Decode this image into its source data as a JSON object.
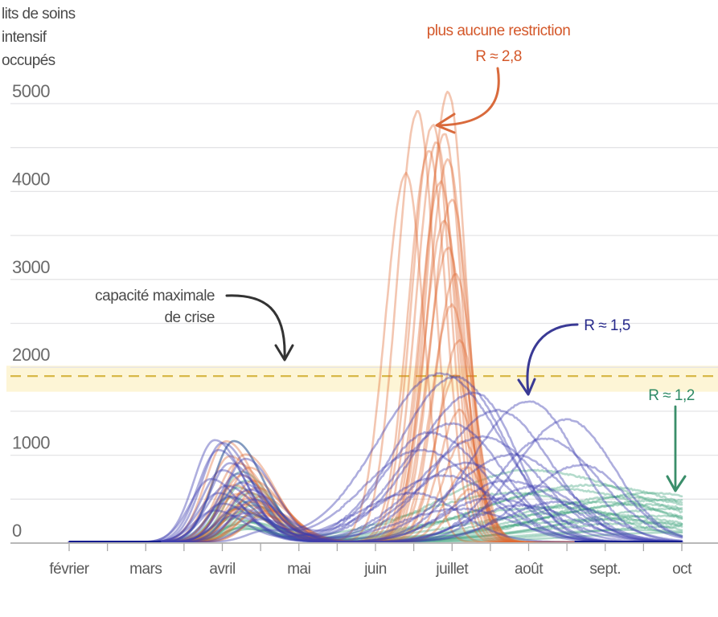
{
  "chart_data": {
    "type": "line",
    "title": "",
    "ylabel": [
      "lits de soins",
      "intensif",
      "occupés"
    ],
    "xlabel": "",
    "ylim": [
      0,
      5000
    ],
    "yticks": [
      0,
      1000,
      2000,
      3000,
      4000,
      5000
    ],
    "minor_grid_step": 500,
    "grid": true,
    "x_unit": "months since 1 Feb",
    "xlim": [
      0,
      8
    ],
    "xticks": [
      {
        "label": "février",
        "x": 0
      },
      {
        "label": "mars",
        "x": 1
      },
      {
        "label": "avril",
        "x": 2
      },
      {
        "label": "mai",
        "x": 3
      },
      {
        "label": "juin",
        "x": 4
      },
      {
        "label": "juillet",
        "x": 5
      },
      {
        "label": "août",
        "x": 6
      },
      {
        "label": "sept.",
        "x": 7
      },
      {
        "label": "oct",
        "x": 8
      }
    ],
    "capacity_line": {
      "value": 1900,
      "band": [
        1850,
        2000
      ],
      "label": [
        "capacité maximale",
        "de crise"
      ]
    },
    "colors": {
      "orange": "#e06a33",
      "blue": "#3f3db0",
      "navy": "#141c8e",
      "green": "#3aa07a",
      "capacity_band": "#fdf5d6",
      "capacity_dash": "#d8b848"
    },
    "series": [
      {
        "name": "plus aucune restriction",
        "scenario_R": "R ≈ 2,8",
        "color_key": "orange",
        "note": "simulated runs; each run = first wave peak (month, value), second wave peak (month, value)",
        "runs": [
          {
            "p1": [
              2.05,
              1150
            ],
            "p2": [
              4.95,
              5120
            ]
          },
          {
            "p1": [
              2.1,
              980
            ],
            "p2": [
              4.55,
              4900
            ]
          },
          {
            "p1": [
              2.2,
              900
            ],
            "p2": [
              4.75,
              4750
            ]
          },
          {
            "p1": [
              2.3,
              1000
            ],
            "p2": [
              4.4,
              4200
            ]
          },
          {
            "p1": [
              2.35,
              850
            ],
            "p2": [
              4.9,
              4650
            ]
          },
          {
            "p1": [
              2.25,
              760
            ],
            "p2": [
              4.8,
              4550
            ]
          },
          {
            "p1": [
              2.4,
              700
            ],
            "p2": [
              4.7,
              4450
            ]
          },
          {
            "p1": [
              2.15,
              650
            ],
            "p2": [
              4.95,
              4350
            ]
          },
          {
            "p1": [
              2.45,
              620
            ],
            "p2": [
              4.85,
              4100
            ]
          },
          {
            "p1": [
              2.3,
              580
            ],
            "p2": [
              5.0,
              3900
            ]
          },
          {
            "p1": [
              2.2,
              550
            ],
            "p2": [
              4.9,
              3650
            ]
          },
          {
            "p1": [
              2.5,
              520
            ],
            "p2": [
              4.95,
              3350
            ]
          },
          {
            "p1": [
              2.35,
              500
            ],
            "p2": [
              5.05,
              3050
            ]
          },
          {
            "p1": [
              2.4,
              460
            ],
            "p2": [
              5.0,
              2700
            ]
          },
          {
            "p1": [
              2.3,
              430
            ],
            "p2": [
              5.1,
              2300
            ]
          },
          {
            "p1": [
              2.5,
              400
            ],
            "p2": [
              5.05,
              1900
            ]
          },
          {
            "p1": [
              2.2,
              380
            ],
            "p2": [
              5.1,
              1500
            ]
          },
          {
            "p1": [
              2.6,
              360
            ],
            "p2": [
              5.15,
              1150
            ]
          },
          {
            "p1": [
              2.45,
              340
            ],
            "p2": [
              5.2,
              850
            ]
          },
          {
            "p1": [
              2.55,
              300
            ],
            "p2": [
              5.25,
              600
            ]
          }
        ]
      },
      {
        "name": "R ≈ 1,5",
        "scenario_R": "R ≈ 1,5",
        "color_key": "blue",
        "runs": [
          {
            "p1": [
              1.9,
              1160
            ],
            "p2": [
              4.85,
              1920
            ]
          },
          {
            "p1": [
              2.0,
              1130
            ],
            "p2": [
              5.05,
              1880
            ]
          },
          {
            "p1": [
              2.15,
              1150
            ],
            "p2": [
              5.3,
              1700
            ]
          },
          {
            "p1": [
              2.3,
              950
            ],
            "p2": [
              6.0,
              1600
            ]
          },
          {
            "p1": [
              1.95,
              1050
            ],
            "p2": [
              6.5,
              1400
            ]
          },
          {
            "p1": [
              2.1,
              900
            ],
            "p2": [
              5.6,
              1500
            ]
          },
          {
            "p1": [
              2.0,
              820
            ],
            "p2": [
              5.0,
              1350
            ]
          },
          {
            "p1": [
              2.2,
              780
            ],
            "p2": [
              4.7,
              1250
            ]
          },
          {
            "p1": [
              1.85,
              720
            ],
            "p2": [
              5.4,
              1200
            ]
          },
          {
            "p1": [
              2.25,
              680
            ],
            "p2": [
              6.2,
              1180
            ]
          },
          {
            "p1": [
              2.05,
              640
            ],
            "p2": [
              4.6,
              1050
            ]
          },
          {
            "p1": [
              2.35,
              600
            ],
            "p2": [
              5.8,
              1000
            ]
          },
          {
            "p1": [
              1.95,
              560
            ],
            "p2": [
              5.2,
              900
            ]
          },
          {
            "p1": [
              2.1,
              520
            ],
            "p2": [
              6.7,
              880
            ]
          },
          {
            "p1": [
              2.4,
              480
            ],
            "p2": [
              4.9,
              760
            ]
          },
          {
            "p1": [
              2.0,
              440
            ],
            "p2": [
              5.7,
              700
            ]
          },
          {
            "p1": [
              2.2,
              400
            ],
            "p2": [
              6.1,
              640
            ]
          },
          {
            "p1": [
              1.9,
              360
            ],
            "p2": [
              4.5,
              560
            ]
          },
          {
            "p1": [
              2.3,
              330
            ],
            "p2": [
              5.5,
              500
            ]
          },
          {
            "p1": [
              2.15,
              300
            ],
            "p2": [
              6.4,
              460
            ]
          },
          {
            "p1": [
              2.6,
              140
            ],
            "p2": [
              5.9,
              420
            ]
          },
          {
            "p1": [
              2.5,
              260
            ],
            "p2": [
              5.1,
              380
            ]
          }
        ]
      },
      {
        "name": "R ≈ 1,2",
        "scenario_R": "R ≈ 1,2",
        "color_key": "green",
        "runs": [
          {
            "p1": [
              2.15,
              1150
            ],
            "p2": [
              6.0,
              820
            ]
          },
          {
            "p1": [
              2.25,
              800
            ],
            "p2": [
              6.8,
              650
            ]
          },
          {
            "p1": [
              2.3,
              700
            ],
            "p2": [
              7.6,
              560
            ]
          },
          {
            "p1": [
              2.2,
              620
            ],
            "p2": [
              6.5,
              600
            ]
          },
          {
            "p1": [
              2.35,
              560
            ],
            "p2": [
              7.2,
              520
            ]
          },
          {
            "p1": [
              2.1,
              500
            ],
            "p2": [
              5.8,
              560
            ]
          },
          {
            "p1": [
              2.3,
              460
            ],
            "p2": [
              7.8,
              480
            ]
          },
          {
            "p1": [
              2.4,
              420
            ],
            "p2": [
              6.9,
              460
            ]
          },
          {
            "p1": [
              2.2,
              380
            ],
            "p2": [
              7.4,
              430
            ]
          },
          {
            "p1": [
              2.25,
              340
            ],
            "p2": [
              6.3,
              400
            ]
          },
          {
            "p1": [
              2.35,
              300
            ],
            "p2": [
              7.9,
              380
            ]
          },
          {
            "p1": [
              2.15,
              270
            ],
            "p2": [
              6.6,
              340
            ]
          },
          {
            "p1": [
              2.3,
              240
            ],
            "p2": [
              7.7,
              300
            ]
          },
          {
            "p1": [
              2.4,
              220
            ],
            "p2": [
              7.0,
              260
            ]
          },
          {
            "p1": [
              2.2,
              200
            ],
            "p2": [
              7.5,
              220
            ]
          },
          {
            "p1": [
              2.3,
              180
            ],
            "p2": [
              8.0,
              180
            ]
          },
          {
            "p1": [
              2.25,
              160
            ],
            "p2": [
              7.3,
              140
            ]
          },
          {
            "p1": [
              2.35,
              150
            ],
            "p2": [
              7.9,
              110
            ]
          }
        ]
      }
    ]
  },
  "annotations": {
    "orange": {
      "line1": "plus aucune restriction",
      "line2": "R ≈ 2,8"
    },
    "blue": {
      "label": "R ≈ 1,5"
    },
    "green": {
      "label": "R ≈ 1,2"
    },
    "capacity": {
      "line1": "capacité maximale",
      "line2": "de crise"
    }
  }
}
